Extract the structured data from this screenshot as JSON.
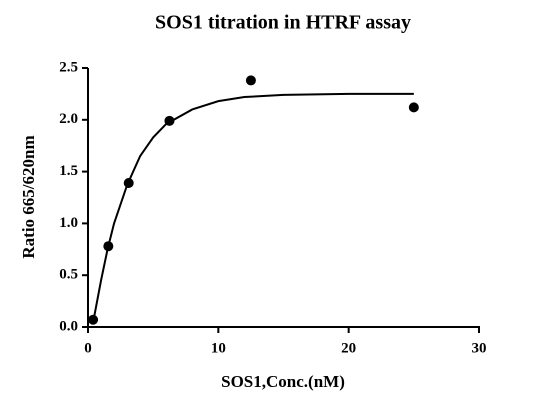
{
  "chart_data": {
    "type": "scatter",
    "title": "SOS1  titration in HTRF assay",
    "x_label": "SOS1,Conc.(nM)",
    "y_label": "Ratio 665/620nm",
    "series": [
      {
        "color": "#000000",
        "x": [
          0.39,
          1.56,
          3.125,
          6.25,
          12.5,
          25
        ],
        "values": [
          0.07,
          0.78,
          1.39,
          1.99,
          2.38,
          2.12
        ]
      }
    ],
    "fit": {
      "color": "#000000",
      "x": [
        0.4,
        1,
        1.5,
        2,
        3,
        4,
        5,
        6,
        8,
        10,
        12,
        15,
        20,
        25
      ],
      "values": [
        0.05,
        0.45,
        0.75,
        1.0,
        1.37,
        1.65,
        1.83,
        1.96,
        2.1,
        2.18,
        2.22,
        2.24,
        2.25,
        2.25
      ]
    },
    "xlim": [
      0,
      30
    ],
    "xticks": [
      0,
      10,
      20,
      30
    ],
    "ylim": [
      0,
      2.5
    ],
    "yticks": [
      {
        "value": 0,
        "label": "0.0"
      },
      0.5,
      {
        "value": 1,
        "label": "1.0"
      },
      1.5,
      {
        "value": 2,
        "label": "2.0"
      },
      2.5
    ]
  }
}
